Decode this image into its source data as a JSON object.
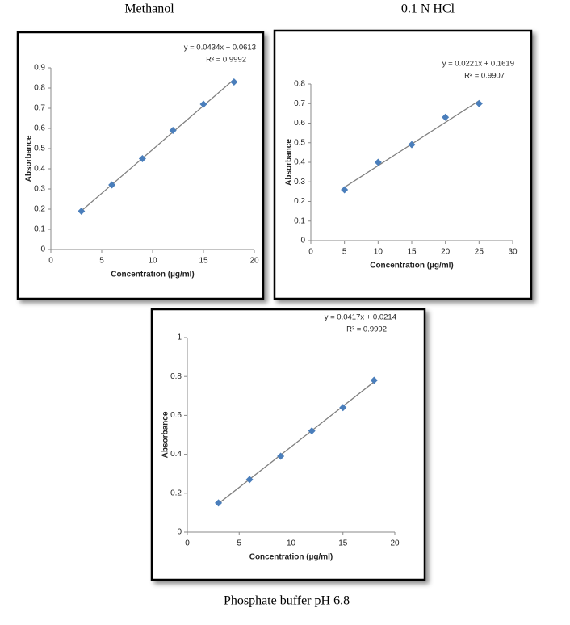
{
  "chart_data": [
    {
      "type": "scatter",
      "title": "Methanol",
      "x_label": "Concentration (µg/ml)",
      "y_label": "Absorbance",
      "x": [
        3,
        6,
        9,
        12,
        15,
        18
      ],
      "values": [
        0.19,
        0.32,
        0.45,
        0.59,
        0.72,
        0.83
      ],
      "color": "#4a7ebb",
      "xlim": [
        0,
        20
      ],
      "xticks": [
        0,
        5,
        10,
        15,
        20
      ],
      "ylim": [
        0,
        0.9
      ],
      "yticks": [
        0,
        0.1,
        0.2,
        0.3,
        0.4,
        0.5,
        0.6,
        0.7,
        0.8,
        0.9
      ],
      "trendline": {
        "slope": 0.0434,
        "intercept": 0.0613,
        "label": "y = 0.0434x + 0.0613",
        "r2_label": "R² = 0.9992",
        "color": "#808080"
      }
    },
    {
      "type": "scatter",
      "title": "0.1 N HCl",
      "x_label": "Concentration (µg/ml)",
      "y_label": "Absorbance",
      "x": [
        5,
        10,
        15,
        20,
        25
      ],
      "values": [
        0.26,
        0.4,
        0.49,
        0.63,
        0.7
      ],
      "color": "#4a7ebb",
      "xlim": [
        0,
        30
      ],
      "xticks": [
        0,
        5,
        10,
        15,
        20,
        25,
        30
      ],
      "ylim": [
        0,
        0.8
      ],
      "yticks": [
        0,
        0.1,
        0.2,
        0.3,
        0.4,
        0.5,
        0.6,
        0.7,
        0.8
      ],
      "trendline": {
        "slope": 0.0221,
        "intercept": 0.1619,
        "label": "y = 0.0221x + 0.1619",
        "r2_label": "R² = 0.9907",
        "color": "#808080"
      }
    },
    {
      "type": "scatter",
      "title": "Phosphate buffer pH 6.8",
      "x_label": "Concentration (µg/ml)",
      "y_label": "Absorbance",
      "x": [
        3,
        6,
        9,
        12,
        15,
        18
      ],
      "values": [
        0.15,
        0.27,
        0.39,
        0.52,
        0.64,
        0.78
      ],
      "color": "#4a7ebb",
      "xlim": [
        0,
        20
      ],
      "xticks": [
        0,
        5,
        10,
        15,
        20
      ],
      "ylim": [
        0,
        1
      ],
      "yticks": [
        0,
        0.2,
        0.4,
        0.6,
        0.8,
        1
      ],
      "trendline": {
        "slope": 0.0417,
        "intercept": 0.0214,
        "label": "y = 0.0417x + 0.0214",
        "r2_label": "R² = 0.9992",
        "color": "#808080"
      }
    }
  ]
}
